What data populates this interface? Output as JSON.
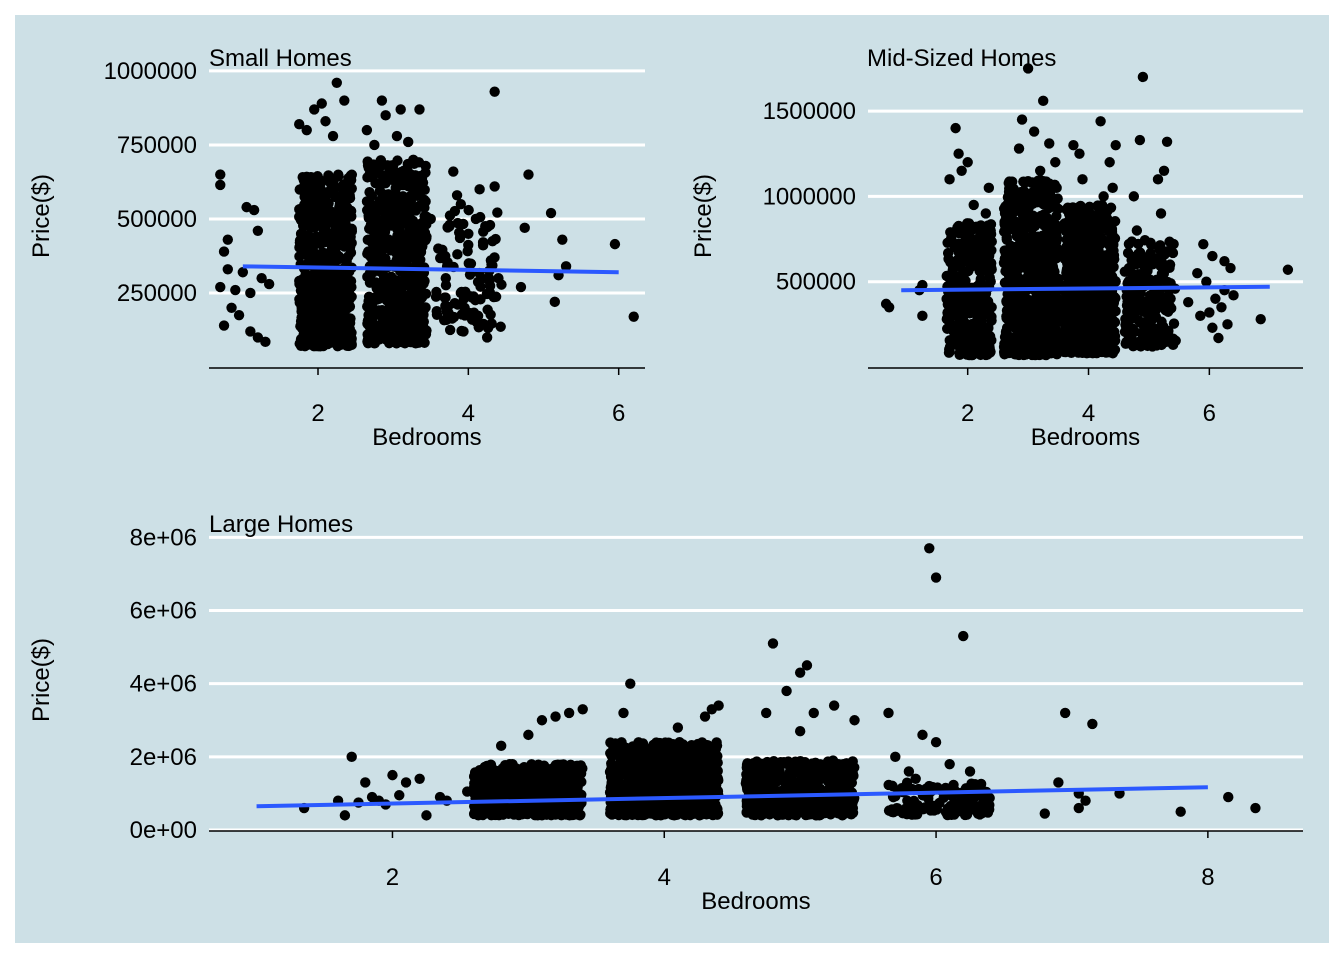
{
  "chart_data": [
    {
      "type": "scatter",
      "title": "Small Homes",
      "xlabel": "Bedrooms",
      "ylabel": "Price($)",
      "xlim": [
        0.55,
        6.35
      ],
      "ylim": [
        0,
        1020000
      ],
      "xticks": [
        2,
        4,
        6
      ],
      "yticks": [
        250000,
        500000,
        750000,
        1000000
      ],
      "ytick_labels": [
        "250000",
        "500000",
        "750000",
        "1000000"
      ],
      "grid": true,
      "points": [
        [
          0.7,
          650000
        ],
        [
          0.7,
          615000
        ],
        [
          0.8,
          430000
        ],
        [
          0.75,
          390000
        ],
        [
          0.8,
          330000
        ],
        [
          0.7,
          270000
        ],
        [
          0.85,
          200000
        ],
        [
          0.9,
          260000
        ],
        [
          0.75,
          140000
        ],
        [
          0.95,
          175000
        ],
        [
          1.1,
          120000
        ],
        [
          1.2,
          100000
        ],
        [
          1.3,
          85000
        ],
        [
          1.05,
          540000
        ],
        [
          1.15,
          530000
        ],
        [
          1.2,
          460000
        ],
        [
          1.0,
          320000
        ],
        [
          1.25,
          300000
        ],
        [
          1.1,
          250000
        ],
        [
          1.35,
          280000
        ],
        [
          1.75,
          820000
        ],
        [
          1.85,
          800000
        ],
        [
          1.95,
          870000
        ],
        [
          2.05,
          890000
        ],
        [
          2.1,
          830000
        ],
        [
          2.25,
          960000
        ],
        [
          2.35,
          900000
        ],
        [
          2.2,
          780000
        ],
        [
          2.65,
          800000
        ],
        [
          2.75,
          750000
        ],
        [
          2.85,
          900000
        ],
        [
          2.9,
          850000
        ],
        [
          3.05,
          780000
        ],
        [
          3.1,
          870000
        ],
        [
          3.2,
          760000
        ],
        [
          3.35,
          870000
        ],
        [
          3.0,
          680000
        ],
        [
          2.95,
          90000
        ],
        [
          3.3,
          80000
        ],
        [
          3.5,
          500000
        ],
        [
          3.6,
          400000
        ],
        [
          3.7,
          300000
        ],
        [
          3.8,
          660000
        ],
        [
          3.85,
          580000
        ],
        [
          3.9,
          550000
        ],
        [
          4.0,
          450000
        ],
        [
          4.1,
          500000
        ],
        [
          4.2,
          420000
        ],
        [
          4.3,
          360000
        ],
        [
          4.35,
          930000
        ],
        [
          4.35,
          610000
        ],
        [
          4.4,
          300000
        ],
        [
          4.25,
          100000
        ],
        [
          3.9,
          250000
        ],
        [
          3.95,
          200000
        ],
        [
          4.05,
          160000
        ],
        [
          4.15,
          600000
        ],
        [
          3.75,
          480000
        ],
        [
          4.75,
          470000
        ],
        [
          4.8,
          650000
        ],
        [
          4.7,
          270000
        ],
        [
          5.1,
          520000
        ],
        [
          5.15,
          220000
        ],
        [
          5.3,
          340000
        ],
        [
          5.25,
          430000
        ],
        [
          5.2,
          310000
        ],
        [
          5.95,
          415000
        ],
        [
          6.2,
          170000
        ]
      ],
      "dense_clusters": [
        {
          "x_range": [
            1.75,
            2.45
          ],
          "y_range": [
            70000,
            650000
          ],
          "n": 620
        },
        {
          "x_range": [
            2.65,
            3.45
          ],
          "y_range": [
            80000,
            700000
          ],
          "n": 620
        },
        {
          "x_range": [
            3.55,
            4.45
          ],
          "y_range": [
            120000,
            550000
          ],
          "n": 90
        }
      ],
      "trend": {
        "x": [
          1,
          6
        ],
        "y": [
          340000,
          320000
        ]
      },
      "trend_color": "#2b59ff"
    },
    {
      "type": "scatter",
      "title": "Mid-Sized Homes",
      "xlabel": "Bedrooms",
      "ylabel": "Price($)",
      "xlim": [
        0.35,
        7.55
      ],
      "ylim": [
        0,
        1770000
      ],
      "xticks": [
        2,
        4,
        6
      ],
      "yticks": [
        500000,
        1000000,
        1500000
      ],
      "ytick_labels": [
        "500000",
        "1000000",
        "1500000"
      ],
      "grid": true,
      "points": [
        [
          0.65,
          370000
        ],
        [
          0.7,
          350000
        ],
        [
          1.25,
          300000
        ],
        [
          1.2,
          450000
        ],
        [
          1.25,
          480000
        ],
        [
          1.7,
          1100000
        ],
        [
          1.8,
          1400000
        ],
        [
          1.85,
          1250000
        ],
        [
          1.9,
          1150000
        ],
        [
          2.0,
          1200000
        ],
        [
          2.1,
          950000
        ],
        [
          2.35,
          1050000
        ],
        [
          2.3,
          900000
        ],
        [
          2.9,
          1450000
        ],
        [
          3.0,
          1750000
        ],
        [
          3.1,
          1380000
        ],
        [
          3.25,
          1560000
        ],
        [
          3.35,
          1310000
        ],
        [
          3.45,
          1200000
        ],
        [
          2.85,
          1280000
        ],
        [
          3.2,
          1150000
        ],
        [
          3.4,
          1050000
        ],
        [
          3.75,
          1300000
        ],
        [
          3.9,
          1100000
        ],
        [
          4.2,
          1440000
        ],
        [
          4.25,
          1000000
        ],
        [
          4.35,
          1200000
        ],
        [
          4.4,
          1050000
        ],
        [
          4.45,
          1300000
        ],
        [
          3.85,
          1250000
        ],
        [
          4.75,
          1000000
        ],
        [
          4.85,
          1330000
        ],
        [
          4.9,
          1700000
        ],
        [
          5.15,
          1100000
        ],
        [
          5.3,
          1320000
        ],
        [
          5.25,
          1150000
        ],
        [
          5.2,
          900000
        ],
        [
          5.35,
          600000
        ],
        [
          5.4,
          130000
        ],
        [
          4.8,
          800000
        ],
        [
          5.65,
          380000
        ],
        [
          5.8,
          550000
        ],
        [
          5.95,
          500000
        ],
        [
          6.05,
          650000
        ],
        [
          6.1,
          400000
        ],
        [
          6.2,
          350000
        ],
        [
          6.25,
          620000
        ],
        [
          6.3,
          250000
        ],
        [
          6.35,
          580000
        ],
        [
          6.15,
          170000
        ],
        [
          6.05,
          230000
        ],
        [
          6.4,
          420000
        ],
        [
          5.85,
          300000
        ],
        [
          6.0,
          320000
        ],
        [
          5.9,
          720000
        ],
        [
          6.25,
          450000
        ],
        [
          6.85,
          280000
        ],
        [
          7.3,
          570000
        ]
      ],
      "dense_clusters": [
        {
          "x_range": [
            1.65,
            2.4
          ],
          "y_range": [
            70000,
            850000
          ],
          "n": 330
        },
        {
          "x_range": [
            2.6,
            3.5
          ],
          "y_range": [
            70000,
            1100000
          ],
          "n": 700
        },
        {
          "x_range": [
            3.6,
            4.45
          ],
          "y_range": [
            80000,
            950000
          ],
          "n": 620
        },
        {
          "x_range": [
            4.6,
            5.45
          ],
          "y_range": [
            120000,
            750000
          ],
          "n": 200
        }
      ],
      "trend": {
        "x": [
          0.9,
          7
        ],
        "y": [
          450000,
          470000
        ]
      },
      "trend_color": "#2b59ff"
    },
    {
      "type": "scatter",
      "title": "Large Homes",
      "xlabel": "Bedrooms",
      "ylabel": "Price($)",
      "xlim": [
        0.65,
        8.7
      ],
      "ylim": [
        0,
        8200000
      ],
      "xticks": [
        2,
        4,
        6,
        8
      ],
      "yticks": [
        0,
        2000000,
        4000000,
        6000000,
        8000000
      ],
      "ytick_labels": [
        "0e+00",
        "2e+06",
        "4e+06",
        "6e+06",
        "8e+06"
      ],
      "grid": true,
      "points": [
        [
          1.35,
          600000
        ],
        [
          1.7,
          2000000
        ],
        [
          1.75,
          750000
        ],
        [
          1.8,
          1300000
        ],
        [
          1.85,
          900000
        ],
        [
          1.9,
          800000
        ],
        [
          2.0,
          1500000
        ],
        [
          2.05,
          950000
        ],
        [
          2.1,
          1300000
        ],
        [
          2.2,
          1400000
        ],
        [
          2.25,
          400000
        ],
        [
          2.35,
          900000
        ],
        [
          2.4,
          800000
        ],
        [
          2.55,
          1050000
        ],
        [
          1.6,
          800000
        ],
        [
          1.95,
          700000
        ],
        [
          1.65,
          400000
        ],
        [
          2.8,
          2300000
        ],
        [
          3.1,
          3000000
        ],
        [
          3.2,
          3100000
        ],
        [
          3.3,
          3200000
        ],
        [
          3.4,
          3300000
        ],
        [
          3.0,
          2600000
        ],
        [
          3.75,
          4000000
        ],
        [
          3.7,
          3200000
        ],
        [
          4.1,
          2800000
        ],
        [
          4.3,
          3100000
        ],
        [
          4.35,
          3300000
        ],
        [
          4.4,
          3400000
        ],
        [
          4.8,
          5100000
        ],
        [
          4.9,
          3800000
        ],
        [
          5.0,
          4300000
        ],
        [
          5.05,
          4500000
        ],
        [
          4.75,
          3200000
        ],
        [
          5.25,
          3400000
        ],
        [
          5.4,
          3000000
        ],
        [
          5.1,
          3200000
        ],
        [
          5.0,
          2700000
        ],
        [
          5.65,
          3200000
        ],
        [
          5.95,
          7700000
        ],
        [
          6.0,
          6900000
        ],
        [
          6.2,
          5300000
        ],
        [
          6.0,
          2400000
        ],
        [
          5.9,
          2600000
        ],
        [
          5.7,
          2000000
        ],
        [
          6.1,
          1800000
        ],
        [
          5.8,
          1600000
        ],
        [
          6.25,
          1600000
        ],
        [
          5.75,
          1100000
        ],
        [
          5.85,
          1400000
        ],
        [
          6.3,
          1000000
        ],
        [
          6.8,
          450000
        ],
        [
          6.9,
          1300000
        ],
        [
          6.95,
          3200000
        ],
        [
          7.05,
          600000
        ],
        [
          7.1,
          800000
        ],
        [
          7.15,
          2900000
        ],
        [
          7.05,
          1000000
        ],
        [
          7.35,
          1000000
        ],
        [
          7.8,
          500000
        ],
        [
          8.15,
          900000
        ],
        [
          8.35,
          600000
        ]
      ],
      "dense_clusters": [
        {
          "x_range": [
            2.6,
            3.4
          ],
          "y_range": [
            400000,
            1800000
          ],
          "n": 550
        },
        {
          "x_range": [
            3.6,
            4.4
          ],
          "y_range": [
            400000,
            2400000
          ],
          "n": 850
        },
        {
          "x_range": [
            4.6,
            5.4
          ],
          "y_range": [
            400000,
            1900000
          ],
          "n": 550
        },
        {
          "x_range": [
            5.65,
            6.4
          ],
          "y_range": [
            400000,
            1300000
          ],
          "n": 130
        }
      ],
      "trend": {
        "x": [
          1,
          8
        ],
        "y": [
          650000,
          1170000
        ]
      },
      "trend_color": "#2b59ff"
    }
  ],
  "colors": {
    "panel_background": "#cde0e6",
    "gridline": "#ffffff",
    "point": "#000000",
    "text": "#000000"
  }
}
